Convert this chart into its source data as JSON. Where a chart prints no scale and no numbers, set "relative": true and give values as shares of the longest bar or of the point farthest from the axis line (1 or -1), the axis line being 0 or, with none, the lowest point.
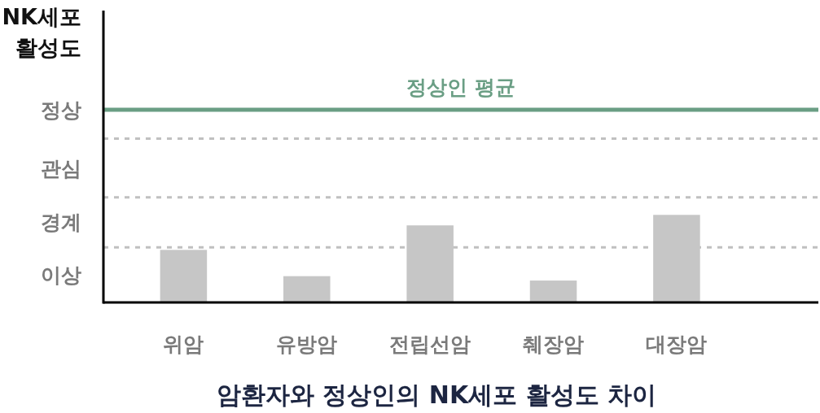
{
  "chart_data": {
    "type": "bar",
    "title": "암환자와 정상인의 NK세포 활성도 차이",
    "categories": [
      "위암",
      "유방암",
      "전립선암",
      "췌장암",
      "대장암"
    ],
    "values": [
      0.6,
      0.3,
      0.88,
      0.25,
      1
    ],
    "color": "#c6c6c6",
    "relative": true,
    "annotations": [
      "NK세포 활성도",
      "이상",
      "경계",
      "관심",
      "정상"
    ],
    "ref_lines": [
      {
        "axis": "y",
        "value": 2.2,
        "label": "정상인 평균",
        "color": "#6a9e84",
        "line_style": "solid"
      },
      {
        "axis": "y",
        "value": 0.63,
        "color": "#c0c0c0",
        "line_style": "dotted"
      },
      {
        "axis": "y",
        "value": 1.2,
        "color": "#c0c0c0",
        "line_style": "dotted"
      },
      {
        "axis": "y",
        "value": 1.87,
        "color": "#c0c0c0",
        "line_style": "dotted"
      }
    ]
  }
}
